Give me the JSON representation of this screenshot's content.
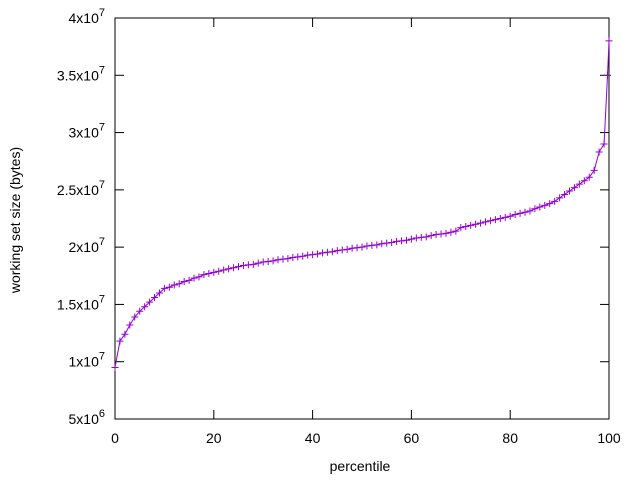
{
  "chart_data": {
    "type": "line",
    "xlabel": "percentile",
    "ylabel": "working set size (bytes)",
    "xlim": [
      0,
      100
    ],
    "xticks": [
      0,
      20,
      40,
      60,
      80,
      100
    ],
    "ylim": [
      5000000,
      40000000
    ],
    "yticks": [
      {
        "value": 5000000,
        "label": "5x10",
        "exponent": "6"
      },
      {
        "value": 10000000,
        "label": "1x10",
        "exponent": "7"
      },
      {
        "value": 15000000,
        "label": "1.5x10",
        "exponent": "7"
      },
      {
        "value": 20000000,
        "label": "2x10",
        "exponent": "7"
      },
      {
        "value": 25000000,
        "label": "2.5x10",
        "exponent": "7"
      },
      {
        "value": 30000000,
        "label": "3x10",
        "exponent": "7"
      },
      {
        "value": 35000000,
        "label": "3.5x10",
        "exponent": "7"
      },
      {
        "value": 40000000,
        "label": "4x10",
        "exponent": "7"
      }
    ],
    "marker": "+",
    "series": [
      {
        "color": "#9400d3",
        "x": [
          0,
          1,
          2,
          3,
          4,
          5,
          6,
          7,
          8,
          9,
          10,
          11,
          12,
          13,
          14,
          15,
          16,
          17,
          18,
          19,
          20,
          21,
          22,
          23,
          24,
          25,
          26,
          27,
          28,
          29,
          30,
          31,
          32,
          33,
          34,
          35,
          36,
          37,
          38,
          39,
          40,
          41,
          42,
          43,
          44,
          45,
          46,
          47,
          48,
          49,
          50,
          51,
          52,
          53,
          54,
          55,
          56,
          57,
          58,
          59,
          60,
          61,
          62,
          63,
          64,
          65,
          66,
          67,
          68,
          69,
          70,
          71,
          72,
          73,
          74,
          75,
          76,
          77,
          78,
          79,
          80,
          81,
          82,
          83,
          84,
          85,
          86,
          87,
          88,
          89,
          90,
          91,
          92,
          93,
          94,
          95,
          96,
          97,
          98,
          99,
          99.7,
          100
        ],
        "values": [
          9500000,
          11800000,
          12400000,
          13200000,
          13900000,
          14400000,
          14800000,
          15200000,
          15600000,
          16000000,
          16400000,
          16500000,
          16700000,
          16800000,
          17000000,
          17100000,
          17300000,
          17400000,
          17600000,
          17700000,
          17800000,
          17900000,
          18000000,
          18100000,
          18200000,
          18300000,
          18400000,
          18450000,
          18500000,
          18600000,
          18700000,
          18750000,
          18800000,
          18900000,
          18950000,
          19000000,
          19100000,
          19150000,
          19200000,
          19300000,
          19350000,
          19400000,
          19500000,
          19550000,
          19600000,
          19700000,
          19750000,
          19800000,
          19900000,
          19950000,
          20000000,
          20100000,
          20150000,
          20200000,
          20300000,
          20350000,
          20400000,
          20500000,
          20550000,
          20600000,
          20700000,
          20800000,
          20850000,
          20900000,
          21000000,
          21100000,
          21150000,
          21200000,
          21300000,
          21400000,
          21700000,
          21800000,
          21900000,
          22000000,
          22100000,
          22200000,
          22300000,
          22400000,
          22500000,
          22600000,
          22700000,
          22850000,
          22950000,
          23050000,
          23150000,
          23350000,
          23500000,
          23650000,
          23800000,
          24000000,
          24300000,
          24600000,
          24900000,
          25200000,
          25500000,
          25800000,
          26100000,
          26700000,
          28300000,
          29000000,
          35000000,
          38000000
        ]
      }
    ]
  }
}
